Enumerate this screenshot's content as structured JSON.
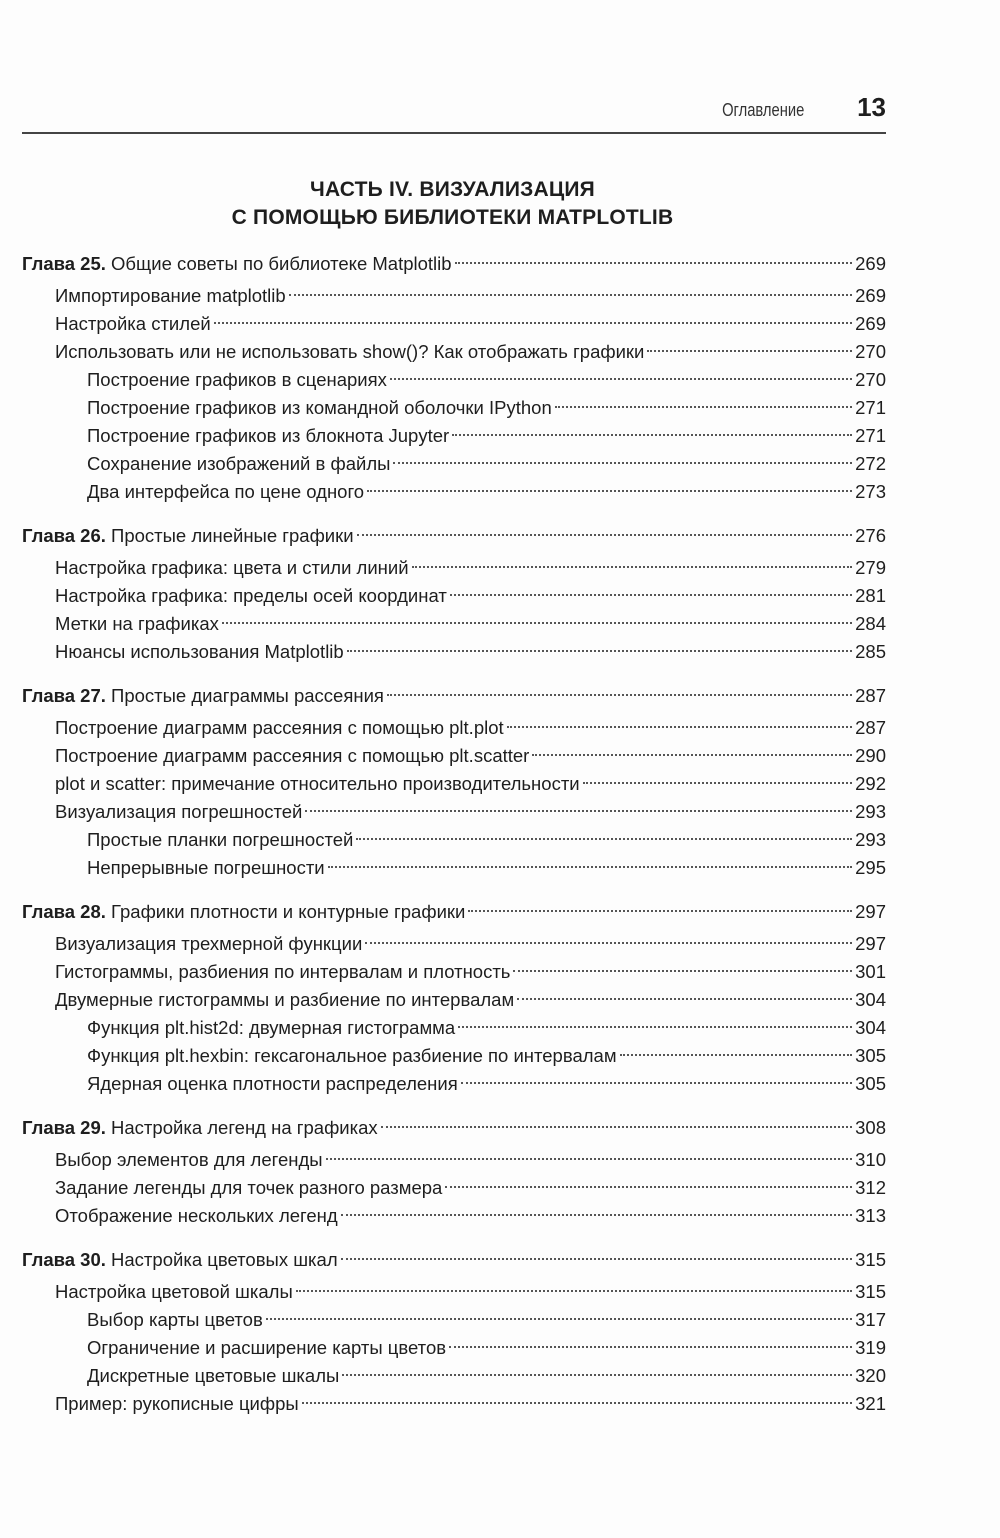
{
  "header": {
    "section_title": "Оглавление",
    "page_number": "13"
  },
  "part": {
    "line1": "ЧАСТЬ IV. ВИЗУАЛИЗАЦИЯ",
    "line2": "С ПОМОЩЬЮ БИБЛИОТЕКИ MATPLOTLIB"
  },
  "chapters": [
    {
      "prefix": "Глава 25.",
      "title": "Общие советы по библиотеке Matplotlib",
      "page": "269",
      "entries": [
        {
          "level": 1,
          "title": "Импортирование matplotlib",
          "page": "269"
        },
        {
          "level": 1,
          "title": "Настройка стилей",
          "page": "269"
        },
        {
          "level": 1,
          "title": "Использовать или не использовать show()? Как отображать графики",
          "page": "270"
        },
        {
          "level": 2,
          "title": "Построение графиков в сценариях",
          "page": "270"
        },
        {
          "level": 2,
          "title": "Построение графиков из командной оболочки IPython",
          "page": "271"
        },
        {
          "level": 2,
          "title": "Построение графиков из блокнота Jupyter",
          "page": "271"
        },
        {
          "level": 2,
          "title": "Сохранение изображений в файлы",
          "page": "272"
        },
        {
          "level": 2,
          "title": "Два интерфейса по цене одного",
          "page": "273"
        }
      ]
    },
    {
      "prefix": "Глава 26.",
      "title": "Простые линейные графики",
      "page": "276",
      "entries": [
        {
          "level": 1,
          "title": "Настройка графика: цвета и стили линий",
          "page": "279"
        },
        {
          "level": 1,
          "title": "Настройка графика: пределы осей координат",
          "page": "281"
        },
        {
          "level": 1,
          "title": "Метки на графиках",
          "page": "284"
        },
        {
          "level": 1,
          "title": "Нюансы использования Matplotlib",
          "page": "285"
        }
      ]
    },
    {
      "prefix": "Глава 27.",
      "title": "Простые диаграммы рассеяния",
      "page": "287",
      "entries": [
        {
          "level": 1,
          "title": "Построение диаграмм рассеяния с помощью plt.plot",
          "page": "287"
        },
        {
          "level": 1,
          "title": "Построение диаграмм рассеяния с помощью plt.scatter",
          "page": "290"
        },
        {
          "level": 1,
          "title": "plot и scatter: примечание относительно производительности",
          "page": "292"
        },
        {
          "level": 1,
          "title": "Визуализация погрешностей",
          "page": "293"
        },
        {
          "level": 2,
          "title": "Простые планки погрешностей",
          "page": "293"
        },
        {
          "level": 2,
          "title": "Непрерывные погрешности",
          "page": "295"
        }
      ]
    },
    {
      "prefix": "Глава 28.",
      "title": "Графики плотности и контурные графики",
      "page": "297",
      "entries": [
        {
          "level": 1,
          "title": "Визуализация трехмерной функции",
          "page": "297"
        },
        {
          "level": 1,
          "title": "Гистограммы, разбиения по интервалам и плотность",
          "page": "301"
        },
        {
          "level": 1,
          "title": "Двумерные гистограммы и разбиение по интервалам",
          "page": "304"
        },
        {
          "level": 2,
          "title": "Функция plt.hist2d: двумерная гистограмма",
          "page": "304"
        },
        {
          "level": 2,
          "title": "Функция plt.hexbin: гексагональное разбиение по интервалам",
          "page": "305"
        },
        {
          "level": 2,
          "title": "Ядерная оценка плотности распределения",
          "page": "305"
        }
      ]
    },
    {
      "prefix": "Глава 29.",
      "title": "Настройка легенд на графиках",
      "page": "308",
      "entries": [
        {
          "level": 1,
          "title": "Выбор элементов для легенды",
          "page": "310"
        },
        {
          "level": 1,
          "title": "Задание легенды для точек разного размера",
          "page": "312"
        },
        {
          "level": 1,
          "title": "Отображение нескольких легенд",
          "page": "313"
        }
      ]
    },
    {
      "prefix": "Глава 30.",
      "title": "Настройка цветовых шкал",
      "page": "315",
      "entries": [
        {
          "level": 1,
          "title": "Настройка цветовой шкалы",
          "page": "315"
        },
        {
          "level": 2,
          "title": "Выбор карты цветов",
          "page": "317"
        },
        {
          "level": 2,
          "title": "Ограничение и расширение карты цветов",
          "page": "319"
        },
        {
          "level": 2,
          "title": "Дискретные цветовые шкалы",
          "page": "320"
        },
        {
          "level": 1,
          "title": "Пример: рукописные цифры",
          "page": "321"
        }
      ]
    }
  ]
}
